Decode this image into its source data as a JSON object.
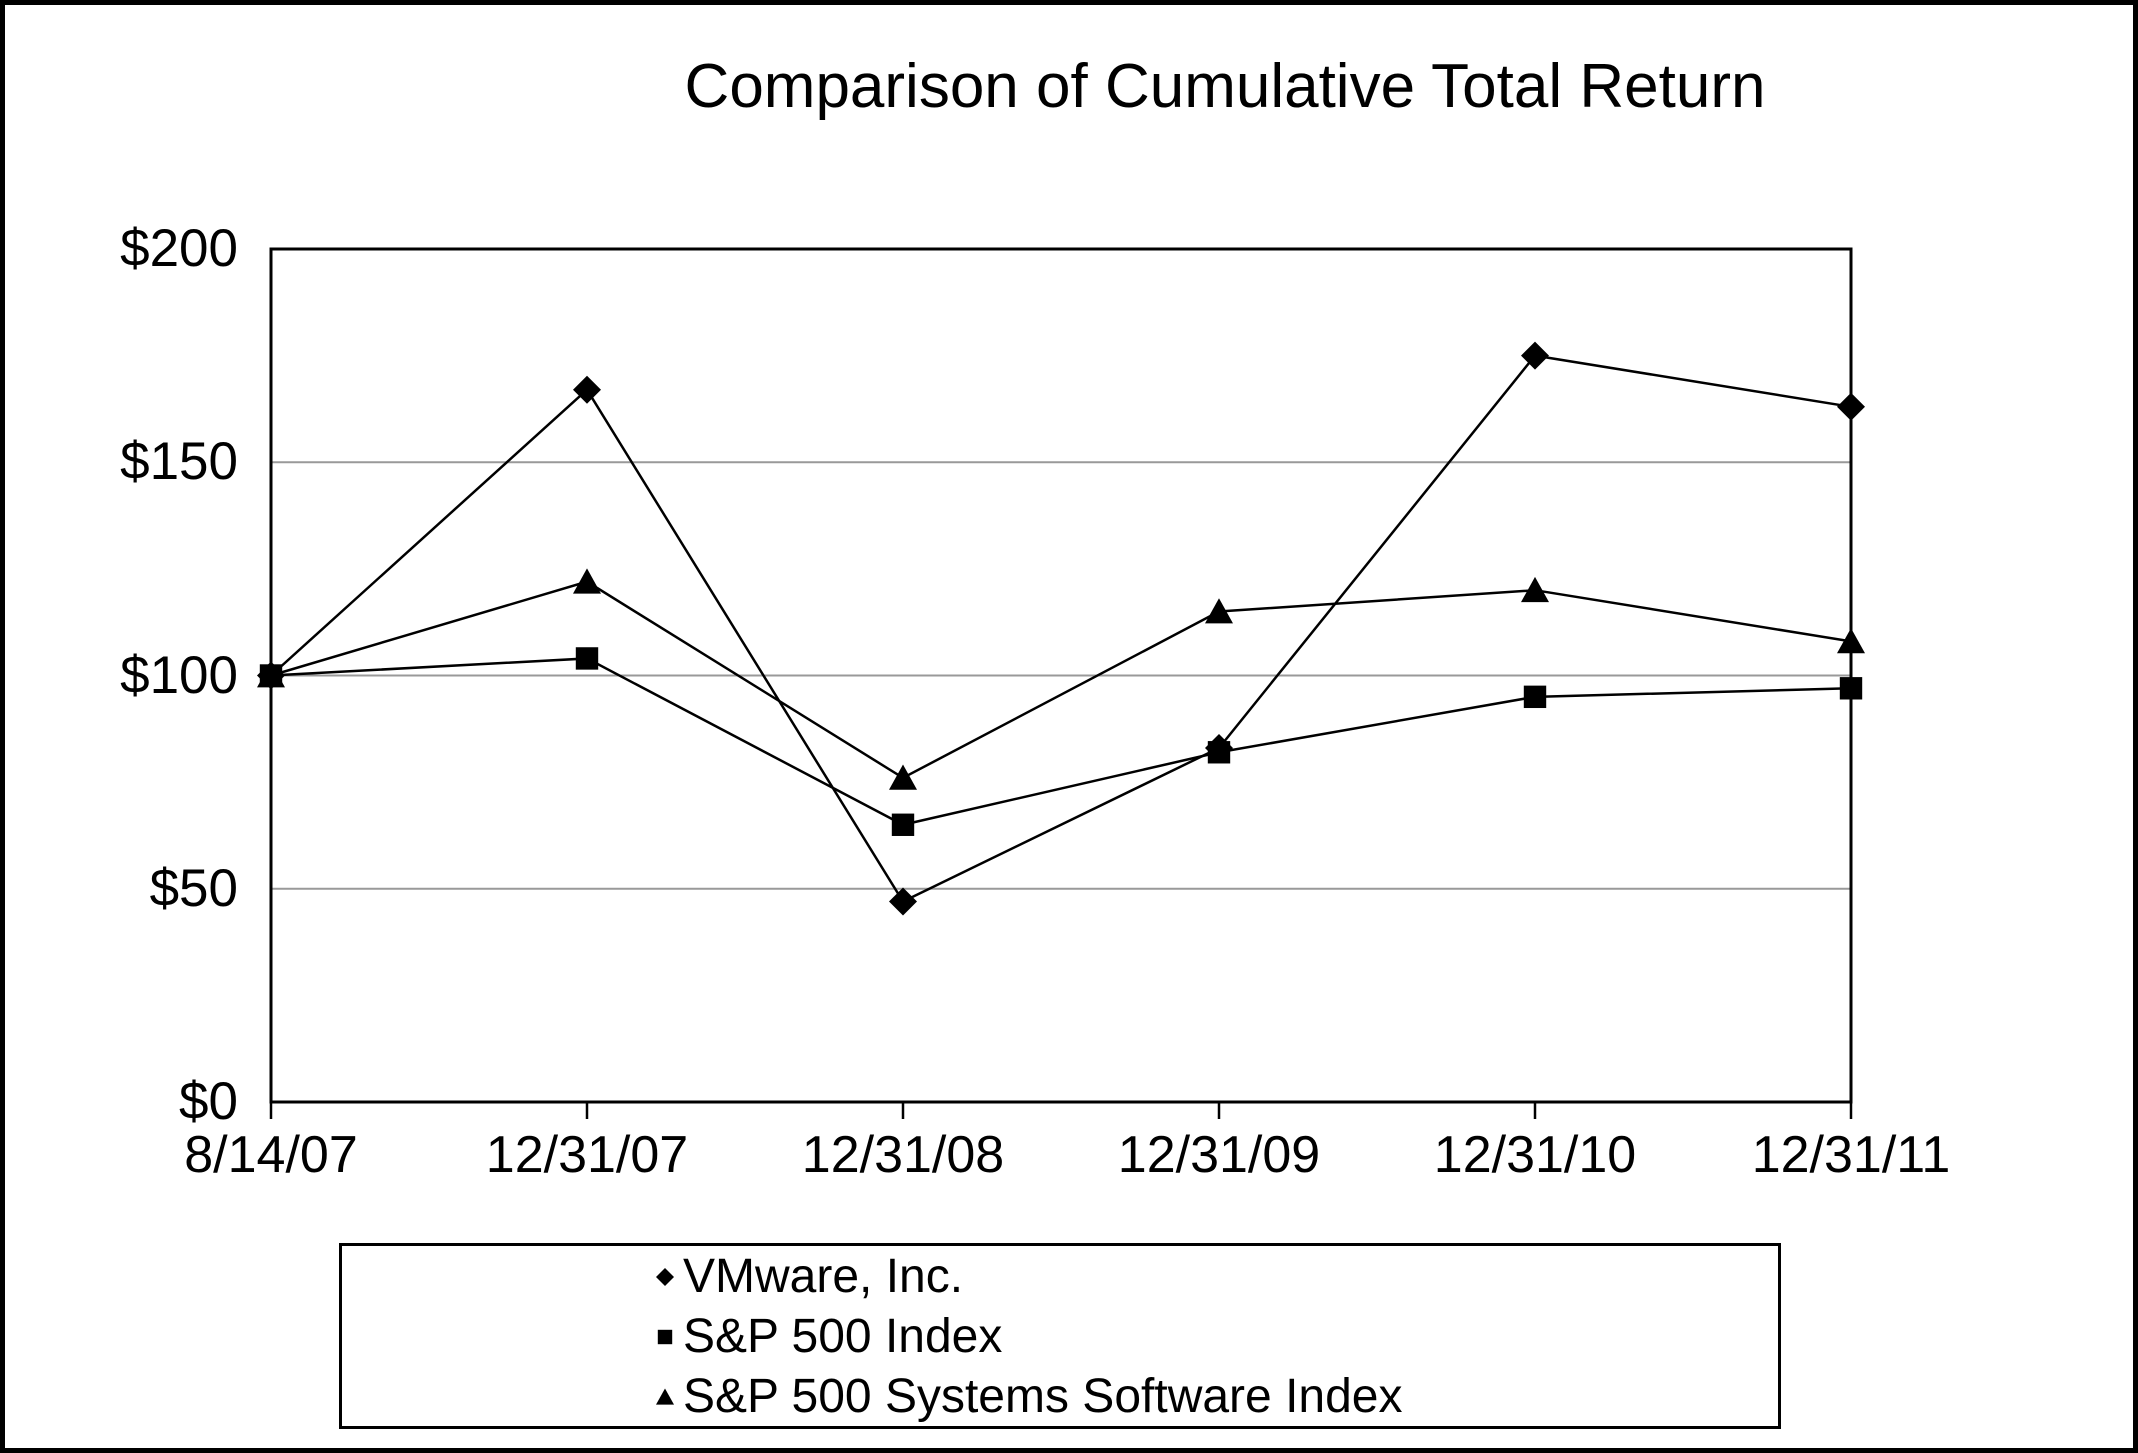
{
  "colors": {
    "series": "#000000",
    "gridline": "#999999",
    "axis": "#000000",
    "border": "#000000",
    "background": "#ffffff",
    "text": "#000000"
  },
  "chart_data": {
    "type": "line",
    "title": "Comparison of Cumulative Total Return",
    "categories": [
      "8/14/07",
      "12/31/07",
      "12/31/08",
      "12/31/09",
      "12/31/10",
      "12/31/11"
    ],
    "series": [
      {
        "name": "VMware, Inc.",
        "marker": "diamond",
        "color": "#000000",
        "values": [
          100,
          167,
          47,
          83,
          175,
          163
        ]
      },
      {
        "name": "S&P 500 Index",
        "marker": "square",
        "color": "#000000",
        "values": [
          100,
          104,
          65,
          82,
          95,
          97
        ]
      },
      {
        "name": "S&P 500 Systems Software Index",
        "marker": "triangle",
        "color": "#000000",
        "values": [
          100,
          122,
          76,
          115,
          120,
          108
        ]
      }
    ],
    "y_ticks": [
      {
        "label": "$200",
        "value": 200
      },
      {
        "label": "$150",
        "value": 150
      },
      {
        "label": "$100",
        "value": 100
      },
      {
        "label": "$50",
        "value": 50
      },
      {
        "label": "$0",
        "value": 0
      }
    ],
    "ylim": [
      0,
      200
    ],
    "xlabel": "",
    "ylabel": "",
    "grid": "horizontal",
    "legend_position": "bottom-center"
  }
}
